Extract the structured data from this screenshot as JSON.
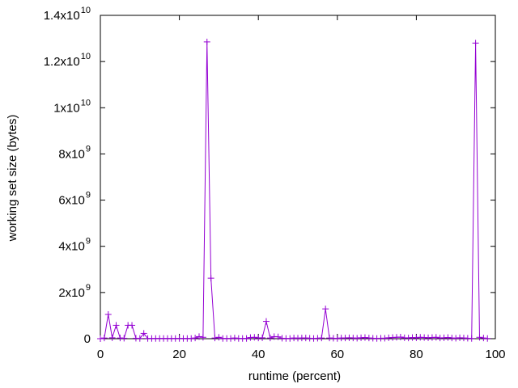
{
  "chart_data": {
    "type": "line",
    "title": "",
    "xlabel": "runtime (percent)",
    "ylabel": "working set size (bytes)",
    "xlim": [
      0,
      100
    ],
    "ylim": [
      0,
      14000000000
    ],
    "x_ticks": [
      {
        "value": 0,
        "label": "0"
      },
      {
        "value": 20,
        "label": "20"
      },
      {
        "value": 40,
        "label": "40"
      },
      {
        "value": 60,
        "label": "60"
      },
      {
        "value": 80,
        "label": "80"
      },
      {
        "value": 100,
        "label": "100"
      }
    ],
    "y_ticks": [
      {
        "value": 0,
        "label": "0",
        "exponent": ""
      },
      {
        "value": 2000000000,
        "label": "2x10",
        "exponent": "9"
      },
      {
        "value": 4000000000,
        "label": "4x10",
        "exponent": "9"
      },
      {
        "value": 6000000000,
        "label": "6x10",
        "exponent": "9"
      },
      {
        "value": 8000000000,
        "label": "8x10",
        "exponent": "9"
      },
      {
        "value": 10000000000,
        "label": "1x10",
        "exponent": "10"
      },
      {
        "value": 12000000000,
        "label": "1.2x10",
        "exponent": "10"
      },
      {
        "value": 14000000000,
        "label": "1.4x10",
        "exponent": "10"
      }
    ],
    "grid": false,
    "legend": "none",
    "marker": "plus",
    "line_color": "#9400d3",
    "series": [
      {
        "x": [
          0,
          1,
          2,
          3,
          4,
          5,
          6,
          7,
          8,
          9,
          10,
          11,
          12,
          13,
          14,
          15,
          16,
          17,
          18,
          19,
          20,
          21,
          22,
          23,
          24,
          25,
          26,
          27,
          28,
          29,
          30,
          31,
          32,
          33,
          34,
          35,
          36,
          37,
          38,
          39,
          40,
          41,
          42,
          43,
          44,
          45,
          46,
          47,
          48,
          49,
          50,
          51,
          52,
          53,
          54,
          55,
          56,
          57,
          58,
          59,
          60,
          61,
          62,
          63,
          64,
          65,
          66,
          67,
          68,
          69,
          70,
          71,
          72,
          73,
          74,
          75,
          76,
          77,
          78,
          79,
          80,
          81,
          82,
          83,
          84,
          85,
          86,
          87,
          88,
          89,
          90,
          91,
          92,
          93,
          94,
          95,
          96,
          97,
          98
        ],
        "y": [
          0,
          30000000,
          1050000000,
          40000000,
          580000000,
          30000000,
          20000000,
          580000000,
          580000000,
          20000000,
          10000000,
          230000000,
          10000000,
          10000000,
          10000000,
          10000000,
          10000000,
          10000000,
          10000000,
          10000000,
          10000000,
          10000000,
          10000000,
          10000000,
          30000000,
          90000000,
          60000000,
          12850000000,
          2620000000,
          30000000,
          60000000,
          10000000,
          10000000,
          10000000,
          30000000,
          10000000,
          10000000,
          10000000,
          50000000,
          60000000,
          30000000,
          40000000,
          750000000,
          30000000,
          90000000,
          80000000,
          20000000,
          10000000,
          10000000,
          30000000,
          20000000,
          30000000,
          30000000,
          20000000,
          10000000,
          20000000,
          30000000,
          1290000000,
          30000000,
          20000000,
          10000000,
          30000000,
          30000000,
          40000000,
          30000000,
          20000000,
          40000000,
          50000000,
          30000000,
          20000000,
          10000000,
          20000000,
          20000000,
          40000000,
          50000000,
          60000000,
          70000000,
          40000000,
          30000000,
          50000000,
          40000000,
          60000000,
          50000000,
          40000000,
          50000000,
          60000000,
          30000000,
          40000000,
          50000000,
          30000000,
          20000000,
          40000000,
          30000000,
          20000000,
          10000000,
          12800000000,
          60000000,
          30000000,
          10000000
        ]
      }
    ]
  }
}
